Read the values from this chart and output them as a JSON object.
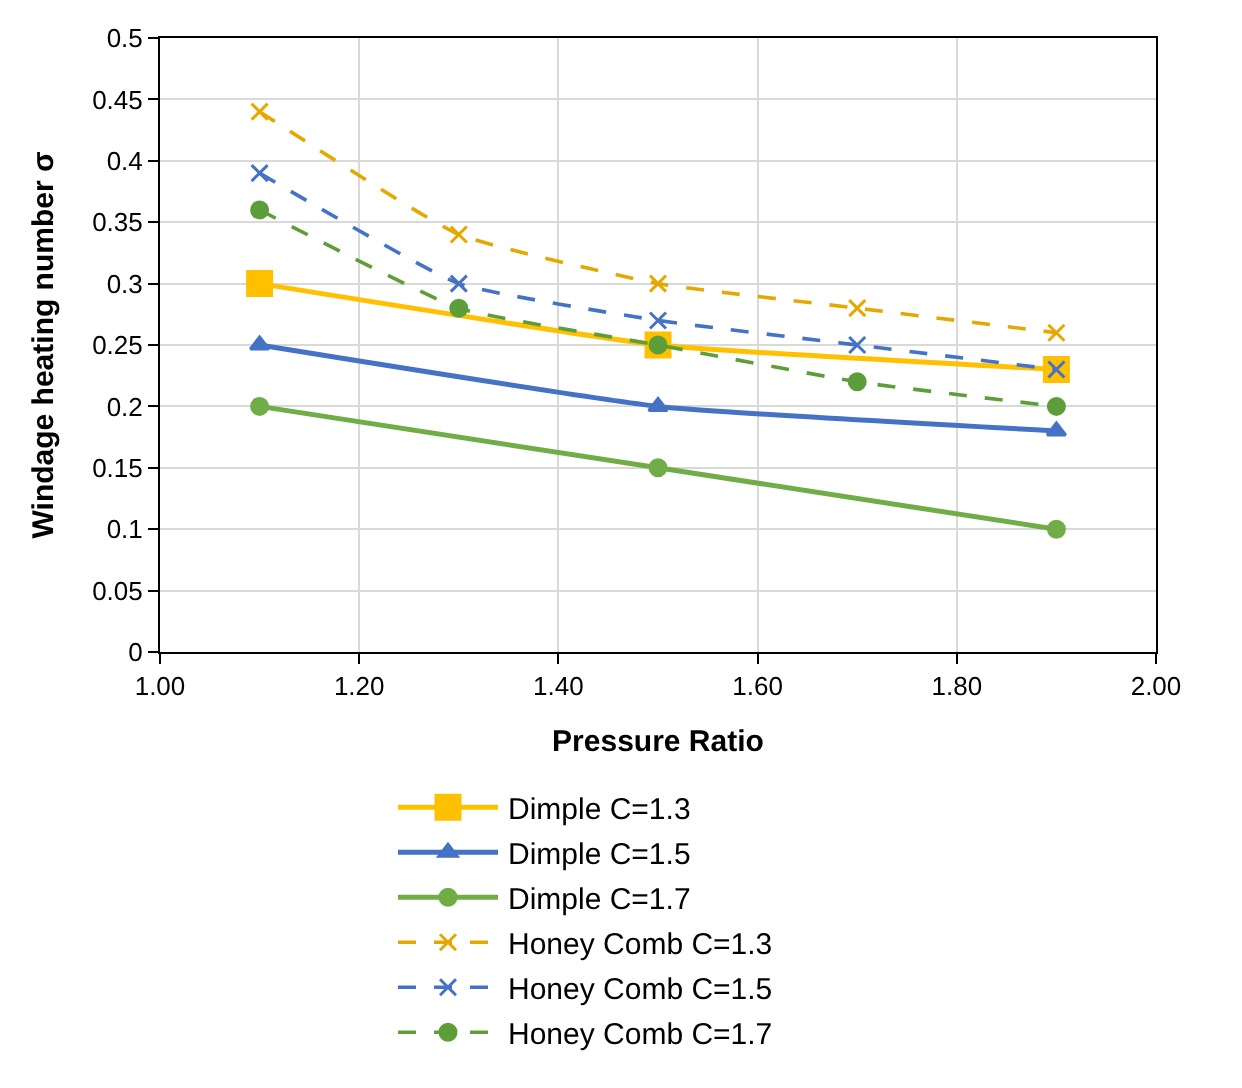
{
  "chart_data": {
    "type": "line",
    "xlabel": "Pressure Ratio",
    "ylabel": "Windage heating number σ",
    "xlim": [
      1.0,
      2.0
    ],
    "xticks": [
      {
        "value": 1.0,
        "label": "1.00"
      },
      {
        "value": 1.2,
        "label": "1.20"
      },
      {
        "value": 1.4,
        "label": "1.40"
      },
      {
        "value": 1.6,
        "label": "1.60"
      },
      {
        "value": 1.8,
        "label": "1.80"
      },
      {
        "value": 2.0,
        "label": "2.00"
      }
    ],
    "ylim": [
      0,
      0.5
    ],
    "yticks": [
      0,
      0.05,
      0.1,
      0.15,
      0.2,
      0.25,
      0.3,
      0.35,
      0.4,
      0.45,
      0.5
    ],
    "grid": true,
    "legend": "bottom",
    "series": [
      {
        "name": "Dimple C=1.3",
        "color": "#ffc000",
        "x": [
          1.1,
          1.5,
          1.9
        ],
        "values": [
          0.3,
          0.25,
          0.23
        ],
        "marker": "square",
        "line_style": "solid"
      },
      {
        "name": "Dimple C=1.5",
        "color": "#4472c4",
        "x": [
          1.1,
          1.5,
          1.9
        ],
        "values": [
          0.25,
          0.2,
          0.18
        ],
        "marker": "triangle",
        "line_style": "solid"
      },
      {
        "name": "Dimple C=1.7",
        "color": "#70ad47",
        "x": [
          1.1,
          1.5,
          1.9
        ],
        "values": [
          0.2,
          0.15,
          0.1
        ],
        "marker": "circle",
        "line_style": "solid"
      },
      {
        "name": "Honey Comb C=1.3",
        "color": "#e6a800",
        "x": [
          1.1,
          1.3,
          1.5,
          1.7,
          1.9
        ],
        "values": [
          0.44,
          0.34,
          0.3,
          0.28,
          0.26
        ],
        "marker": "cross",
        "line_style": "dashed"
      },
      {
        "name": "Honey Comb C=1.5",
        "color": "#4472c4",
        "x": [
          1.1,
          1.3,
          1.5,
          1.7,
          1.9
        ],
        "values": [
          0.39,
          0.3,
          0.27,
          0.25,
          0.23
        ],
        "marker": "cross",
        "line_style": "dashed"
      },
      {
        "name": "Honey Comb C=1.7",
        "color": "#5e9e3a",
        "x": [
          1.1,
          1.3,
          1.5,
          1.7,
          1.9
        ],
        "values": [
          0.36,
          0.28,
          0.25,
          0.22,
          0.2
        ],
        "marker": "circle",
        "line_style": "dashed"
      }
    ]
  }
}
